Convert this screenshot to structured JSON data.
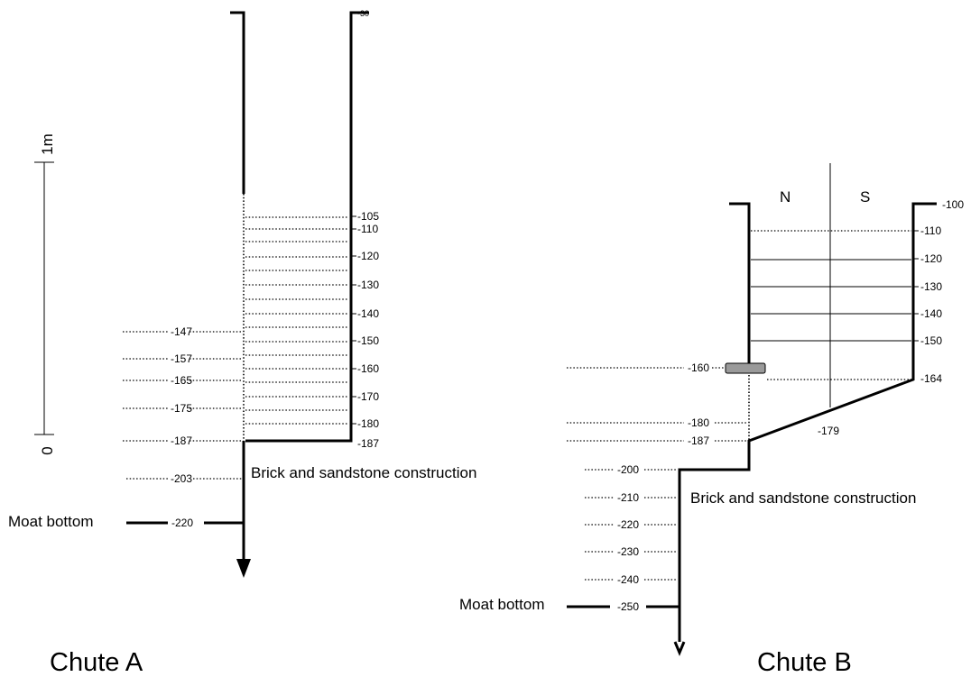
{
  "scale_bar": {
    "zero_label": "0",
    "top_label": "1m"
  },
  "chute_a": {
    "title": "Chute A",
    "top_label": "-30",
    "right_labels": [
      "-105",
      "-110",
      "-120",
      "-130",
      "-140",
      "-150",
      "-160",
      "-170",
      "-180",
      "-187"
    ],
    "left_labels": [
      "-147",
      "-157",
      "-165",
      "-175",
      "-187",
      "-203"
    ],
    "construction_label": "Brick and sandstone construction",
    "moat_label": "Moat bottom",
    "moat_value": "-220"
  },
  "chute_b": {
    "title": "Chute B",
    "north_label": "N",
    "south_label": "S",
    "right_labels": [
      "-100",
      "-110",
      "-120",
      "-130",
      "-140",
      "-150",
      "-164"
    ],
    "center_label": "-179",
    "left_labels": [
      "-160",
      "-180",
      "-187",
      "-200",
      "-210",
      "-220",
      "-230",
      "-240"
    ],
    "construction_label": "Brick and sandstone construction",
    "moat_label": "Moat bottom",
    "moat_value": "-250"
  }
}
